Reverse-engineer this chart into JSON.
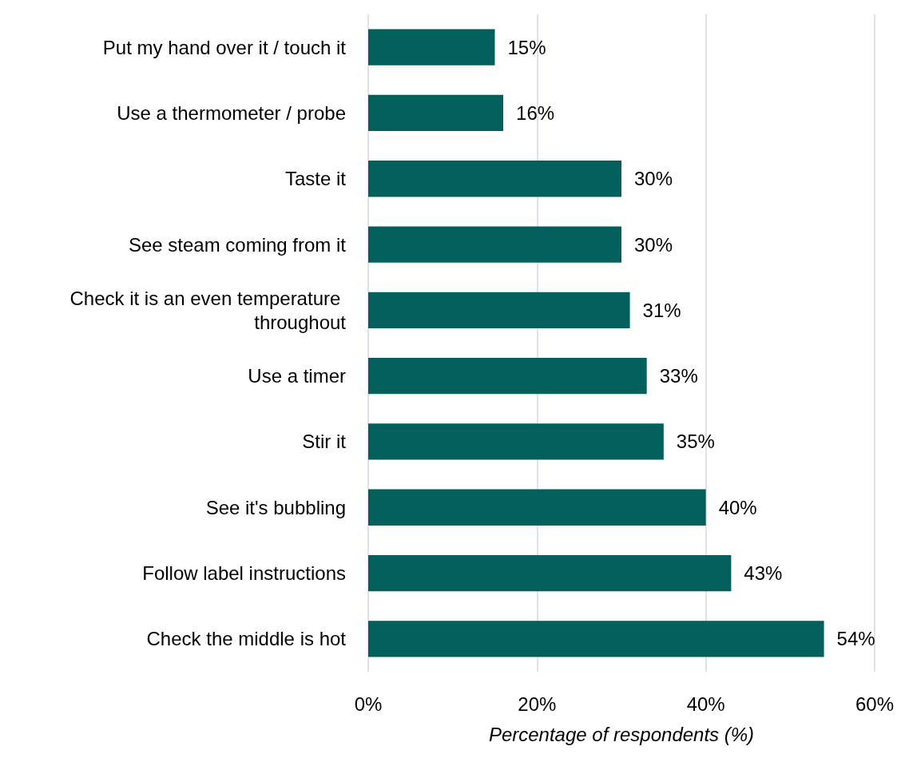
{
  "chart_data": {
    "type": "bar",
    "orientation": "horizontal",
    "xlabel": "Percentage of respondents (%)",
    "categories": [
      "Put my hand over it / touch it",
      "Use a thermometer / probe",
      "Taste it",
      "See steam coming from it",
      "Check it is an even temperature throughout",
      "Use a timer",
      "Stir it",
      "See it's bubbling",
      "Follow label instructions",
      "Check the middle is hot"
    ],
    "values": [
      15,
      16,
      30,
      30,
      31,
      33,
      35,
      40,
      43,
      54
    ],
    "value_labels": [
      "15%",
      "16%",
      "30%",
      "30%",
      "31%",
      "33%",
      "35%",
      "40%",
      "43%",
      "54%"
    ],
    "color": "#02605c",
    "xlim": [
      0,
      60
    ],
    "xticks": [
      {
        "value": 0,
        "label": "0%"
      },
      {
        "value": 20,
        "label": "20%"
      },
      {
        "value": 40,
        "label": "40%"
      },
      {
        "value": 60,
        "label": "60%"
      }
    ],
    "grid": "x"
  }
}
